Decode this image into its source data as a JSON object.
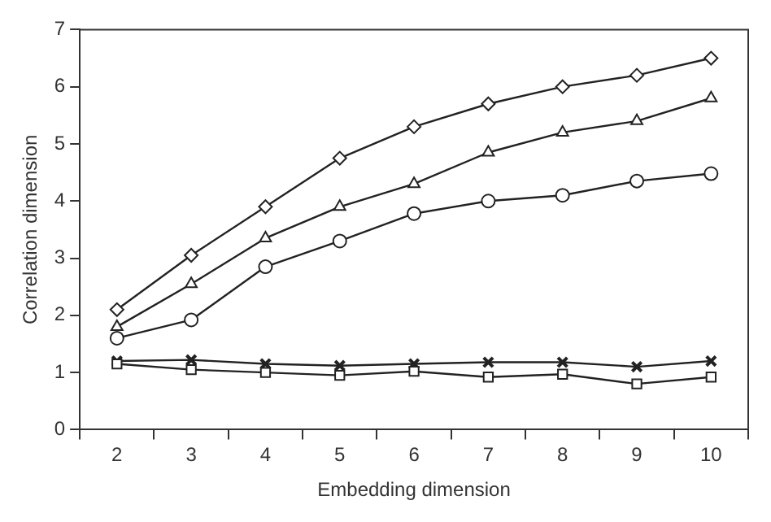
{
  "chart_data": {
    "type": "line",
    "xlabel": "Embedding dimension",
    "ylabel": "Correlation dimension",
    "categories": [
      "2",
      "3",
      "4",
      "5",
      "6",
      "7",
      "8",
      "9",
      "10"
    ],
    "series": [
      {
        "color": "#222222",
        "marker": "diamond",
        "values": [
          2.1,
          3.05,
          3.9,
          4.75,
          5.3,
          5.7,
          6.0,
          6.2,
          6.5
        ]
      },
      {
        "color": "#222222",
        "marker": "triangle",
        "values": [
          1.8,
          2.55,
          3.35,
          3.9,
          4.3,
          4.85,
          5.2,
          5.4,
          5.8
        ]
      },
      {
        "color": "#222222",
        "marker": "circle",
        "values": [
          1.6,
          1.92,
          2.85,
          3.3,
          3.78,
          4.0,
          4.1,
          4.35,
          4.48
        ]
      },
      {
        "color": "#222222",
        "marker": "cross",
        "values": [
          1.2,
          1.22,
          1.15,
          1.12,
          1.15,
          1.18,
          1.18,
          1.1,
          1.2
        ]
      },
      {
        "color": "#222222",
        "marker": "square",
        "values": [
          1.15,
          1.05,
          1.0,
          0.95,
          1.02,
          0.92,
          0.97,
          0.8,
          0.92
        ]
      }
    ],
    "ylim": [
      0,
      7
    ],
    "yticks": [
      0,
      1,
      2,
      3,
      4,
      5,
      6,
      7
    ],
    "grid": false,
    "legend": false,
    "line_style": "solid"
  }
}
